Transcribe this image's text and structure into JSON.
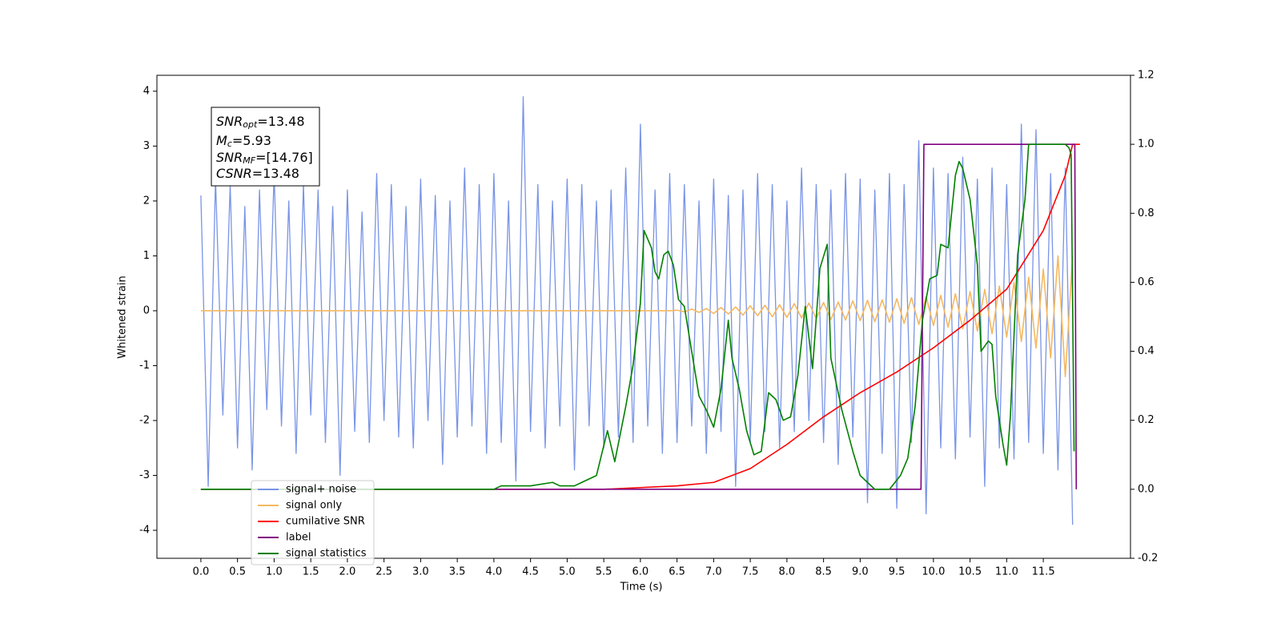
{
  "chart_data": {
    "type": "line",
    "xlabel": "Time (s)",
    "ylabel": "Whitened strain",
    "xlim": [
      -0.6,
      12.69
    ],
    "ylim": [
      -4.51,
      4.29
    ],
    "y2lim": [
      -0.2,
      1.2
    ],
    "xticks": [
      {
        "value": 0,
        "label": "0.0"
      },
      0.5,
      {
        "value": 1,
        "label": "1.0"
      },
      1.5,
      {
        "value": 2,
        "label": "2.0"
      },
      2.5,
      {
        "value": 3,
        "label": "3.0"
      },
      3.5,
      {
        "value": 4,
        "label": "4.0"
      },
      4.5,
      {
        "value": 5,
        "label": "5.0"
      },
      5.5,
      {
        "value": 6,
        "label": "6.0"
      },
      6.5,
      {
        "value": 7,
        "label": "7.0"
      },
      7.5,
      {
        "value": 8,
        "label": "8.0"
      },
      8.5,
      {
        "value": 9,
        "label": "9.0"
      },
      9.5,
      {
        "value": 10,
        "label": "10.0"
      },
      10.5,
      {
        "value": 11,
        "label": "11.0"
      },
      11.5
    ],
    "yticks": [
      -4,
      -3,
      -2,
      -1,
      0,
      1,
      2,
      3,
      4
    ],
    "y2ticks": [
      -0.2,
      {
        "value": 0,
        "label": "0.0"
      },
      0.2,
      0.4,
      0.6,
      0.8,
      {
        "value": 1,
        "label": "1.0"
      },
      1.2
    ],
    "legend": "lower left",
    "annotation": {
      "lines": [
        {
          "main": "SNR",
          "sub": "opt",
          "rest": "=13.48"
        },
        {
          "main": "M",
          "sub": "c",
          "rest": "=5.93"
        },
        {
          "main": "SNR",
          "sub": "MF",
          "rest": "=[14.76]"
        },
        {
          "main": "CSNR",
          "rest": "=13.48"
        }
      ]
    },
    "x": [
      0,
      0.1,
      0.2,
      0.3,
      0.4,
      0.5,
      0.6,
      0.7,
      0.8,
      0.9,
      1,
      1.1,
      1.2,
      1.3,
      1.4,
      1.5,
      1.6,
      1.7,
      1.8,
      1.9,
      2,
      2.1,
      2.2,
      2.3,
      2.4,
      2.5,
      2.6,
      2.7,
      2.8,
      2.9,
      3,
      3.1,
      3.2,
      3.3,
      3.4,
      3.5,
      3.6,
      3.7,
      3.8,
      3.9,
      4,
      4.1,
      4.2,
      4.3,
      4.4,
      4.5,
      4.6,
      4.7,
      4.8,
      4.9,
      5,
      5.1,
      5.2,
      5.3,
      5.4,
      5.5,
      5.6,
      5.7,
      5.8,
      5.9,
      6,
      6.1,
      6.2,
      6.3,
      6.4,
      6.5,
      6.6,
      6.7,
      6.8,
      6.9,
      7,
      7.1,
      7.2,
      7.3,
      7.4,
      7.5,
      7.6,
      7.7,
      7.8,
      7.9,
      8,
      8.1,
      8.2,
      8.3,
      8.4,
      8.5,
      8.6,
      8.7,
      8.8,
      8.9,
      9,
      9.1,
      9.2,
      9.3,
      9.4,
      9.5,
      9.6,
      9.7,
      9.8,
      9.9,
      10,
      10.1,
      10.2,
      10.3,
      10.4,
      10.5,
      10.6,
      10.7,
      10.8,
      10.9,
      11,
      11.1,
      11.2,
      11.3,
      11.4,
      11.5,
      11.6,
      11.7,
      11.8,
      11.9
    ],
    "series": [
      {
        "name": "signal+ noise",
        "color": "#7994e6",
        "values": [
          2.1,
          -3.2,
          2.4,
          -1.9,
          2.3,
          -2.5,
          1.9,
          -2.9,
          2.2,
          -1.8,
          2.5,
          -2.1,
          2.0,
          -2.6,
          2.3,
          -1.9,
          2.2,
          -2.4,
          1.9,
          -3.0,
          2.2,
          -2.2,
          1.8,
          -2.4,
          2.5,
          -2.0,
          2.3,
          -2.3,
          1.9,
          -2.5,
          2.4,
          -2.0,
          2.1,
          -2.8,
          2.0,
          -2.3,
          2.6,
          -2.1,
          2.3,
          -2.6,
          2.5,
          -2.4,
          2.0,
          -3.1,
          3.9,
          -2.2,
          2.3,
          -2.5,
          2.0,
          -2.1,
          2.4,
          -2.9,
          2.3,
          -2.1,
          2.0,
          -2.5,
          2.2,
          -2.3,
          2.6,
          -2.4,
          3.4,
          -2.1,
          2.2,
          -2.6,
          2.5,
          -2.4,
          2.3,
          -2.1,
          2.0,
          -2.6,
          2.4,
          -2.2,
          2.1,
          -3.2,
          2.2,
          -2.4,
          2.5,
          -2.2,
          2.3,
          -2.5,
          2.0,
          -2.2,
          2.6,
          -2.0,
          2.3,
          -2.4,
          2.2,
          -2.8,
          2.5,
          -2.3,
          2.4,
          -3.5,
          2.2,
          -2.6,
          2.5,
          -3.6,
          2.3,
          -2.4,
          3.1,
          -3.7,
          2.6,
          -2.5,
          2.5,
          -2.7,
          2.8,
          -2.3,
          2.4,
          -3.2,
          2.6,
          -2.5,
          2.3,
          -2.7,
          3.4,
          -2.4,
          3.3,
          -2.6,
          2.5,
          -2.9,
          2.6,
          -3.9
        ]
      },
      {
        "name": "signal only",
        "color": "#f5b860",
        "values": [
          0,
          0,
          0,
          0,
          0,
          0,
          0,
          0,
          0,
          0,
          0,
          0,
          0,
          0,
          0,
          0,
          0,
          0,
          0,
          0,
          0,
          0,
          0,
          0,
          0,
          0,
          0,
          0,
          0,
          0,
          0,
          0,
          0,
          0,
          0,
          0,
          0,
          0,
          0,
          0,
          0,
          0,
          0,
          0,
          0,
          0,
          0,
          0,
          0,
          0,
          0,
          0,
          0,
          0,
          0,
          0,
          0,
          0,
          0,
          0,
          0,
          0,
          0,
          0,
          0,
          0.01,
          -0.02,
          0.03,
          -0.03,
          0.04,
          -0.05,
          0.06,
          -0.06,
          0.07,
          -0.08,
          0.09,
          -0.09,
          0.1,
          -0.11,
          0.11,
          -0.12,
          0.13,
          -0.13,
          0.14,
          -0.14,
          0.15,
          -0.16,
          0.16,
          -0.17,
          0.18,
          -0.18,
          0.19,
          -0.2,
          0.2,
          -0.21,
          0.22,
          -0.23,
          0.24,
          -0.25,
          0.26,
          -0.27,
          0.28,
          -0.3,
          0.31,
          -0.33,
          0.35,
          -0.37,
          0.39,
          -0.42,
          0.45,
          -0.48,
          0.52,
          -0.56,
          0.61,
          -0.68,
          0.76,
          -0.86,
          1.0,
          -1.2,
          1.0
        ]
      },
      {
        "name": "cumilative SNR",
        "color": "#ff0000",
        "axis": "y2",
        "x": [
          0,
          5.5,
          6.5,
          7,
          7.5,
          8,
          8.5,
          9,
          9.5,
          10,
          10.5,
          11,
          11.5,
          11.8,
          11.9,
          12
        ],
        "values": [
          0,
          0,
          0.01,
          0.02,
          0.06,
          0.13,
          0.21,
          0.28,
          0.34,
          0.41,
          0.49,
          0.58,
          0.75,
          0.91,
          1.0,
          1.0
        ]
      },
      {
        "name": "label",
        "color": "#800080",
        "axis": "y2",
        "x": [
          0,
          9.83,
          9.87,
          11.93,
          11.95
        ],
        "values": [
          0,
          0,
          1,
          1,
          0
        ]
      },
      {
        "name": "signal statistics",
        "color": "#008000",
        "axis": "y2",
        "x": [
          0,
          3.5,
          4,
          4.1,
          4.5,
          4.8,
          4.9,
          5.1,
          5.2,
          5.4,
          5.55,
          5.65,
          5.8,
          5.9,
          6,
          6.05,
          6.15,
          6.2,
          6.25,
          6.32,
          6.38,
          6.45,
          6.52,
          6.6,
          6.7,
          6.8,
          6.9,
          7,
          7.1,
          7.2,
          7.25,
          7.35,
          7.45,
          7.55,
          7.65,
          7.75,
          7.85,
          7.95,
          8.05,
          8.15,
          8.25,
          8.35,
          8.45,
          8.55,
          8.6,
          8.75,
          8.9,
          9,
          9.2,
          9.4,
          9.55,
          9.65,
          9.75,
          9.85,
          9.95,
          10.05,
          10.1,
          10.2,
          10.3,
          10.35,
          10.4,
          10.5,
          10.6,
          10.65,
          10.75,
          10.8,
          10.85,
          10.95,
          11,
          11.05,
          11.15,
          11.25,
          11.3,
          11.4,
          11.8,
          11.85,
          11.88,
          11.92
        ],
        "values": [
          0,
          0,
          0,
          0.01,
          0.01,
          0.02,
          0.01,
          0.01,
          0.02,
          0.04,
          0.17,
          0.08,
          0.24,
          0.36,
          0.54,
          0.75,
          0.7,
          0.63,
          0.61,
          0.68,
          0.69,
          0.65,
          0.55,
          0.53,
          0.4,
          0.27,
          0.23,
          0.18,
          0.29,
          0.49,
          0.38,
          0.29,
          0.17,
          0.1,
          0.11,
          0.28,
          0.26,
          0.2,
          0.21,
          0.33,
          0.53,
          0.35,
          0.64,
          0.71,
          0.38,
          0.23,
          0.11,
          0.04,
          0,
          0,
          0.04,
          0.09,
          0.24,
          0.49,
          0.61,
          0.62,
          0.71,
          0.7,
          0.91,
          0.95,
          0.93,
          0.84,
          0.65,
          0.4,
          0.43,
          0.42,
          0.27,
          0.13,
          0.07,
          0.21,
          0.68,
          0.84,
          1.0,
          1.0,
          1.0,
          0.99,
          0.97,
          0.11
        ]
      }
    ]
  }
}
